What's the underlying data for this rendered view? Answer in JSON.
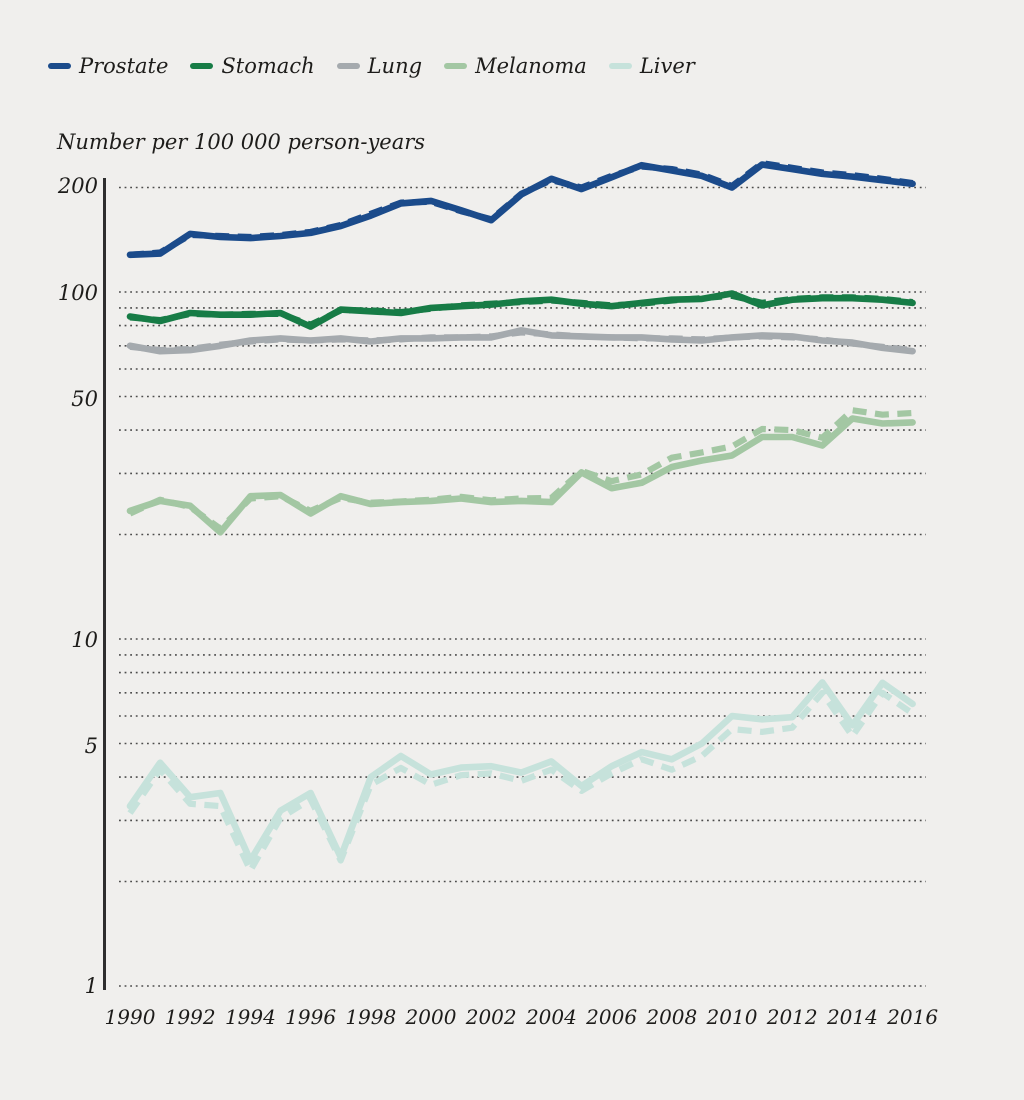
{
  "axis_title": "Number per 100 000 person-years",
  "chart_data": {
    "type": "line",
    "title": "Number per 100 000 person-years",
    "ylabel": "Number per 100 000 person-years",
    "xlabel": "",
    "yscale": "log",
    "ylim": [
      1,
      250
    ],
    "grid": true,
    "legend_position": "top-left",
    "line_style_note": "each series drawn twice: solid line and dashed line (nearly overlapping variants)",
    "x": [
      1990,
      1991,
      1992,
      1993,
      1994,
      1995,
      1996,
      1997,
      1998,
      1999,
      2000,
      2001,
      2002,
      2003,
      2004,
      2005,
      2006,
      2007,
      2008,
      2009,
      2010,
      2011,
      2012,
      2013,
      2014,
      2015,
      2016
    ],
    "xaxis": {
      "ticks": [
        1990,
        1992,
        1994,
        1996,
        1998,
        2000,
        2002,
        2004,
        2006,
        2008,
        2010,
        2012,
        2014,
        2016
      ]
    },
    "yaxis": {
      "ticks": [
        "200",
        "100",
        "50",
        "10",
        "5",
        "1"
      ],
      "gridlines": [
        1,
        2,
        3,
        4,
        5,
        6,
        7,
        8,
        9,
        10,
        20,
        30,
        40,
        50,
        60,
        70,
        80,
        90,
        100,
        200
      ]
    },
    "series": [
      {
        "name": "Prostate",
        "color": "#1b4b8b",
        "values": [
          128,
          129,
          147,
          144,
          143,
          145,
          148,
          155,
          166,
          180,
          183,
          172,
          161,
          191,
          212,
          198,
          214,
          232,
          224,
          216,
          200,
          233,
          226,
          219,
          215,
          210,
          205
        ],
        "values_dashed": [
          128,
          130,
          146,
          145,
          144,
          146,
          149,
          156,
          168,
          181,
          182,
          171,
          162,
          192,
          210,
          200,
          216,
          230,
          226,
          218,
          202,
          235,
          228,
          221,
          217,
          212,
          206
        ]
      },
      {
        "name": "Stomach",
        "color": "#177c46",
        "values": [
          85,
          82.5,
          87,
          86,
          86,
          87,
          79.5,
          89,
          88,
          87,
          90,
          91,
          92,
          94,
          95,
          92.5,
          91,
          93,
          95,
          95.5,
          99,
          91.5,
          95,
          96,
          96,
          95,
          93
        ],
        "values_dashed": [
          84.5,
          83,
          86.5,
          86,
          86.5,
          86.5,
          80.5,
          88.5,
          88.5,
          87.5,
          89.5,
          91.5,
          92.5,
          93.5,
          94.5,
          93,
          91.5,
          92.5,
          94.5,
          96,
          97.5,
          93,
          95.5,
          96.5,
          96.5,
          95.5,
          93.5
        ]
      },
      {
        "name": "Lung",
        "color": "#a5aaae",
        "values": [
          70,
          67.5,
          68,
          70,
          72.5,
          73.5,
          72.5,
          73.5,
          72,
          73.5,
          73.5,
          74,
          74,
          77.5,
          75,
          74.5,
          74,
          74,
          73,
          72.5,
          74,
          75,
          74.5,
          72.5,
          71.5,
          69,
          67.5
        ],
        "values_dashed": [
          69.5,
          68,
          68.5,
          70.5,
          72,
          73,
          72.5,
          73,
          72.5,
          73,
          74,
          74,
          74.5,
          76.5,
          75.5,
          74.5,
          74,
          73.5,
          73.5,
          73,
          74,
          74.5,
          74,
          73,
          71,
          69.5,
          68
        ]
      },
      {
        "name": "Melanoma",
        "color": "#a3c7a3",
        "values": [
          23.4,
          25,
          24.2,
          20.3,
          25.8,
          26,
          23,
          25.8,
          24.5,
          24.8,
          25,
          25.4,
          24.8,
          25,
          24.8,
          30.2,
          27.2,
          28.2,
          31.3,
          32.7,
          33.8,
          38.2,
          38.2,
          36.1,
          43.2,
          41.8,
          42.1
        ],
        "values_dashed": [
          23,
          25.2,
          24,
          20.8,
          25.4,
          25.8,
          23.4,
          25.5,
          24.7,
          24.9,
          25.2,
          25.7,
          25.1,
          25.4,
          25.5,
          30.5,
          28.5,
          29.8,
          33.3,
          34.5,
          35.9,
          40.3,
          40,
          38,
          45.6,
          44.3,
          44.8
        ]
      },
      {
        "name": "Liver",
        "color": "#c6e2db",
        "values": [
          3.3,
          4.4,
          3.5,
          3.6,
          2.3,
          3.2,
          3.6,
          2.35,
          4.0,
          4.6,
          4.07,
          4.26,
          4.3,
          4.12,
          4.44,
          3.77,
          4.3,
          4.72,
          4.5,
          5.0,
          6.0,
          5.87,
          5.95,
          7.5,
          5.64,
          7.48,
          6.5
        ],
        "values_dashed": [
          3.15,
          4.2,
          3.35,
          3.3,
          2.15,
          3.05,
          3.45,
          2.3,
          3.8,
          4.25,
          3.8,
          4.05,
          4.1,
          3.9,
          4.2,
          3.65,
          4.1,
          4.5,
          4.2,
          4.6,
          5.5,
          5.4,
          5.55,
          7.0,
          5.25,
          7.0,
          6.1
        ]
      }
    ],
    "colors": {
      "background": "#f0efed",
      "text": "#1d1c1a",
      "gridline": "#4c4c4c",
      "axis_line": "#2e2e2e"
    }
  }
}
